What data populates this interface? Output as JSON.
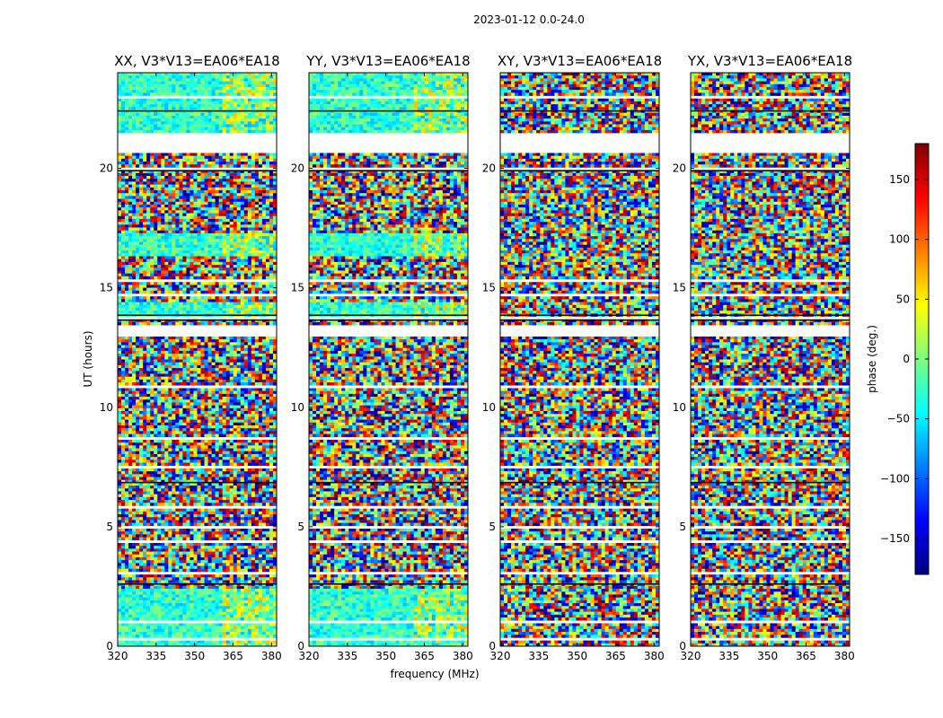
{
  "figure": {
    "suptitle": "2023-01-12 0.0-24.0"
  },
  "chart_data": {
    "type": "heatmap",
    "xlabel": "frequency (MHz)",
    "ylabel": "UT (hours)",
    "xlim": [
      320,
      382
    ],
    "ylim": [
      0,
      24
    ],
    "x_ticks": [
      320,
      335,
      350,
      365,
      380
    ],
    "y_ticks": [
      0,
      5,
      10,
      15,
      20
    ],
    "colorbar": {
      "label": "phase (deg.)",
      "range": [
        -180,
        180
      ],
      "ticks": [
        -150,
        -100,
        -50,
        0,
        50,
        100,
        150
      ],
      "tick_labels": [
        "−150",
        "−100",
        "−50",
        "0",
        "50",
        "100",
        "150"
      ],
      "colormap": "jet",
      "colors": [
        "#00007f",
        "#0000ff",
        "#007fff",
        "#00ffff",
        "#7fff7f",
        "#ffff00",
        "#ff7f00",
        "#ff0000",
        "#7f0000"
      ]
    },
    "gaps_ut": [
      [
        0.28,
        0.36
      ],
      [
        0.95,
        1.02
      ],
      [
        1.4,
        1.48
      ],
      [
        2.35,
        2.45
      ],
      [
        3.05,
        3.12
      ],
      [
        3.58,
        3.65
      ],
      [
        4.35,
        4.45
      ],
      [
        4.95,
        5.02
      ],
      [
        5.75,
        5.85
      ],
      [
        6.55,
        6.62
      ],
      [
        7.45,
        7.55
      ],
      [
        8.7,
        8.78
      ],
      [
        9.45,
        9.52
      ],
      [
        10.15,
        10.22
      ],
      [
        10.85,
        10.95
      ],
      [
        11.95,
        12.05
      ],
      [
        12.95,
        13.45
      ],
      [
        13.7,
        13.82
      ],
      [
        14.7,
        14.78
      ],
      [
        15.3,
        15.38
      ],
      [
        16.15,
        16.25
      ],
      [
        17.25,
        17.32
      ],
      [
        17.95,
        18.02
      ],
      [
        19.95,
        20.1
      ],
      [
        20.7,
        21.5
      ],
      [
        22.95,
        23.05
      ]
    ],
    "black_lines_ut": [
      2.6,
      6.85,
      13.65,
      13.85,
      19.9,
      22.4
    ],
    "panels": [
      {
        "title": "XX, V3*V13=EA06*EA18",
        "smooth_bands_ut": [
          [
            0,
            2.4
          ],
          [
            13.8,
            14.4
          ],
          [
            16.3,
            17.3
          ],
          [
            21.5,
            24
          ]
        ]
      },
      {
        "title": "YY, V3*V13=EA06*EA18",
        "smooth_bands_ut": [
          [
            0,
            2.4
          ],
          [
            13.8,
            14.4
          ],
          [
            16.3,
            17.3
          ],
          [
            21.5,
            24
          ]
        ]
      },
      {
        "title": "XY, V3*V13=EA06*EA18",
        "smooth_bands_ut": []
      },
      {
        "title": "YX, V3*V13=EA06*EA18",
        "smooth_bands_ut": []
      }
    ]
  }
}
